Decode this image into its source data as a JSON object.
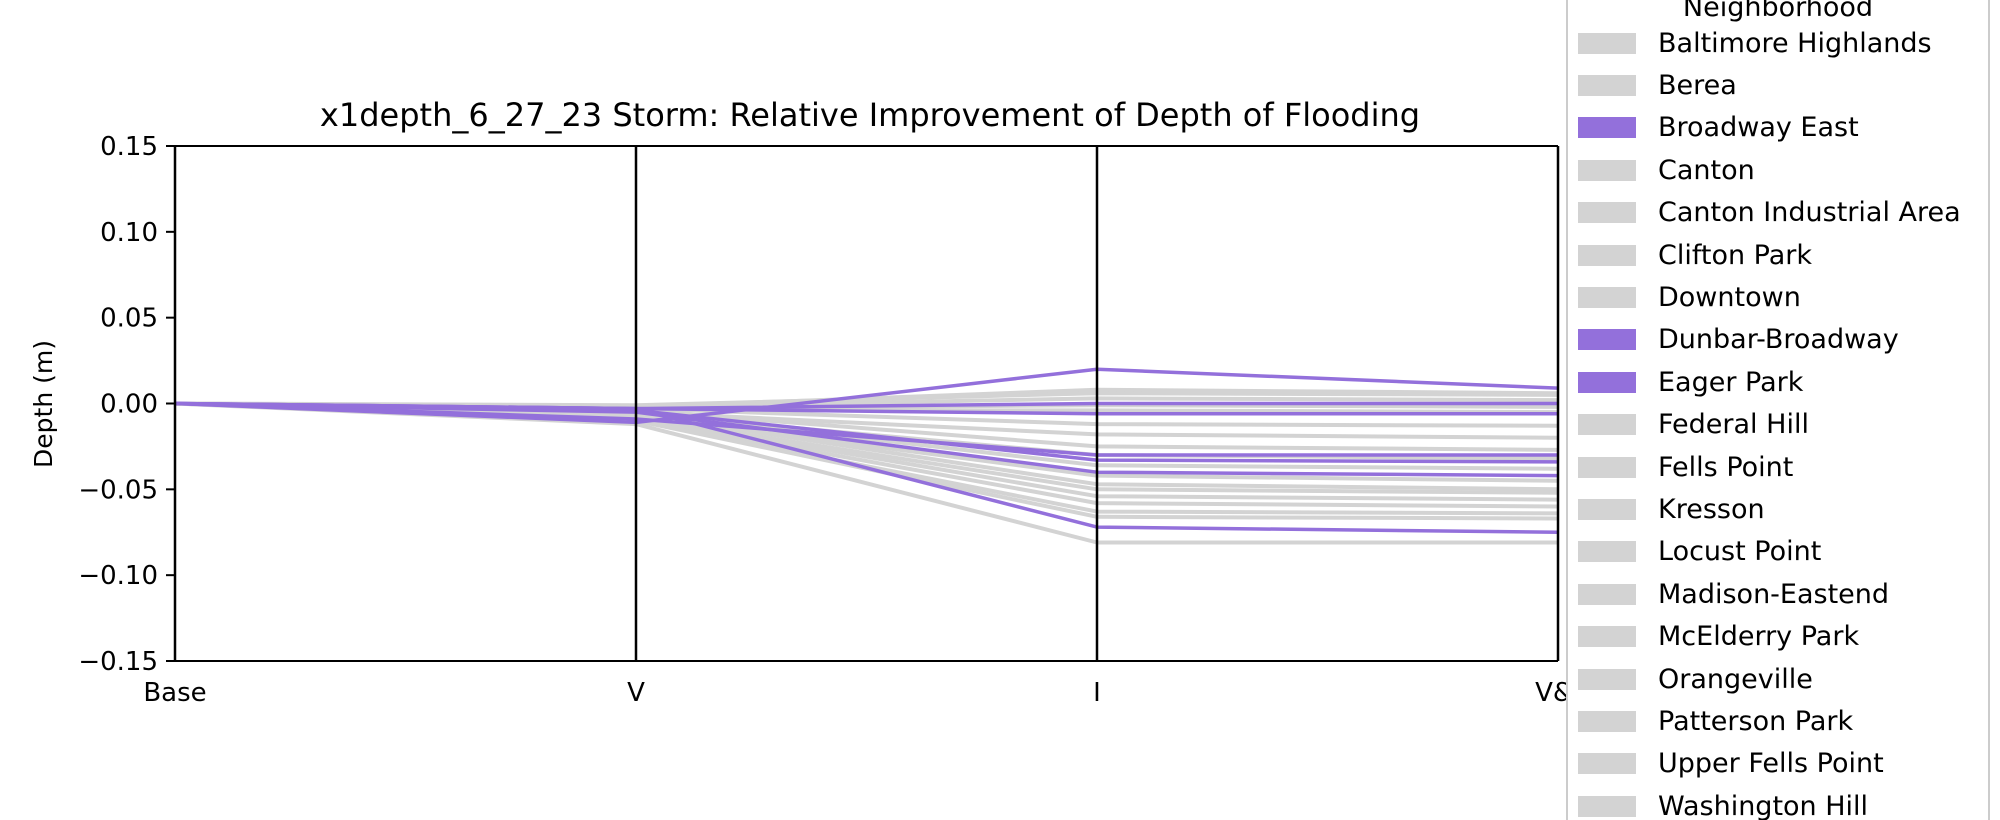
{
  "chart_data": {
    "type": "line",
    "title": "x1depth_6_27_23 Storm: Relative Improvement of Depth of Flooding",
    "xlabel": "",
    "ylabel": "Depth (m)",
    "categories": [
      "Base",
      "V",
      "I",
      "V&I"
    ],
    "ylim": [
      -0.15,
      0.15
    ],
    "yticks": [
      -0.15,
      -0.1,
      -0.05,
      0.0,
      0.05,
      0.1,
      0.15
    ],
    "ytick_labels": [
      "−0.15",
      "−0.10",
      "−0.05",
      "0.00",
      "0.05",
      "0.10",
      "0.15"
    ],
    "grid": false,
    "highlight_color": "#9370DB",
    "muted_color": "#D3D3D3",
    "legend": {
      "title": "Neighborhood",
      "placement": "right",
      "entries": [
        {
          "label": "Baltimore Highlands",
          "highlighted": false
        },
        {
          "label": "Berea",
          "highlighted": false
        },
        {
          "label": "Broadway East",
          "highlighted": true
        },
        {
          "label": "Canton",
          "highlighted": false
        },
        {
          "label": "Canton Industrial Area",
          "highlighted": false
        },
        {
          "label": "Clifton Park",
          "highlighted": false
        },
        {
          "label": "Downtown",
          "highlighted": false
        },
        {
          "label": "Dunbar-Broadway",
          "highlighted": true
        },
        {
          "label": "Eager Park",
          "highlighted": true
        },
        {
          "label": "Federal Hill",
          "highlighted": false
        },
        {
          "label": "Fells Point",
          "highlighted": false
        },
        {
          "label": "Kresson",
          "highlighted": false
        },
        {
          "label": "Locust Point",
          "highlighted": false
        },
        {
          "label": "Madison-Eastend",
          "highlighted": false
        },
        {
          "label": "McElderry Park",
          "highlighted": false
        },
        {
          "label": "Orangeville",
          "highlighted": false
        },
        {
          "label": "Patterson Park",
          "highlighted": false
        },
        {
          "label": "Upper Fells Point",
          "highlighted": false
        },
        {
          "label": "Washington Hill",
          "highlighted": false
        }
      ]
    },
    "series": [
      {
        "highlighted": false,
        "values": [
          0,
          -0.002,
          0.008,
          0.006
        ]
      },
      {
        "highlighted": false,
        "values": [
          0,
          -0.001,
          0.006,
          0.005
        ]
      },
      {
        "highlighted": false,
        "values": [
          0,
          -0.002,
          0.003,
          0.002
        ]
      },
      {
        "highlighted": false,
        "values": [
          0,
          -0.003,
          -0.001,
          -0.002
        ]
      },
      {
        "highlighted": false,
        "values": [
          0,
          -0.004,
          -0.004,
          -0.005
        ]
      },
      {
        "highlighted": false,
        "values": [
          0,
          -0.003,
          -0.012,
          -0.013
        ]
      },
      {
        "highlighted": false,
        "values": [
          0,
          -0.005,
          -0.018,
          -0.02
        ]
      },
      {
        "highlighted": false,
        "values": [
          0,
          -0.004,
          -0.025,
          -0.027
        ]
      },
      {
        "highlighted": false,
        "values": [
          0,
          -0.006,
          -0.03,
          -0.032
        ]
      },
      {
        "highlighted": false,
        "values": [
          0,
          -0.005,
          -0.036,
          -0.038
        ]
      },
      {
        "highlighted": false,
        "values": [
          0,
          -0.007,
          -0.042,
          -0.045
        ]
      },
      {
        "highlighted": false,
        "values": [
          0,
          -0.006,
          -0.047,
          -0.05
        ]
      },
      {
        "highlighted": false,
        "values": [
          0,
          -0.008,
          -0.05,
          -0.052
        ]
      },
      {
        "highlighted": false,
        "values": [
          0,
          -0.008,
          -0.054,
          -0.056
        ]
      },
      {
        "highlighted": false,
        "values": [
          0,
          -0.009,
          -0.058,
          -0.06
        ]
      },
      {
        "highlighted": false,
        "values": [
          0,
          -0.01,
          -0.063,
          -0.064
        ]
      },
      {
        "highlighted": false,
        "values": [
          0,
          -0.01,
          -0.066,
          -0.067
        ]
      },
      {
        "highlighted": false,
        "values": [
          0,
          -0.012,
          -0.081,
          -0.081
        ]
      },
      {
        "highlighted": true,
        "values": [
          0,
          -0.011,
          0.02,
          0.009
        ]
      },
      {
        "highlighted": true,
        "values": [
          0,
          -0.003,
          0.0,
          0.0
        ]
      },
      {
        "highlighted": true,
        "values": [
          0,
          -0.003,
          -0.006,
          -0.006
        ]
      },
      {
        "highlighted": true,
        "values": [
          0,
          -0.009,
          -0.03,
          -0.03
        ]
      },
      {
        "highlighted": true,
        "values": [
          0,
          -0.004,
          -0.033,
          -0.034
        ]
      },
      {
        "highlighted": true,
        "values": [
          0,
          -0.005,
          -0.04,
          -0.042
        ]
      },
      {
        "highlighted": true,
        "values": [
          0,
          -0.003,
          -0.072,
          -0.075
        ]
      }
    ]
  }
}
